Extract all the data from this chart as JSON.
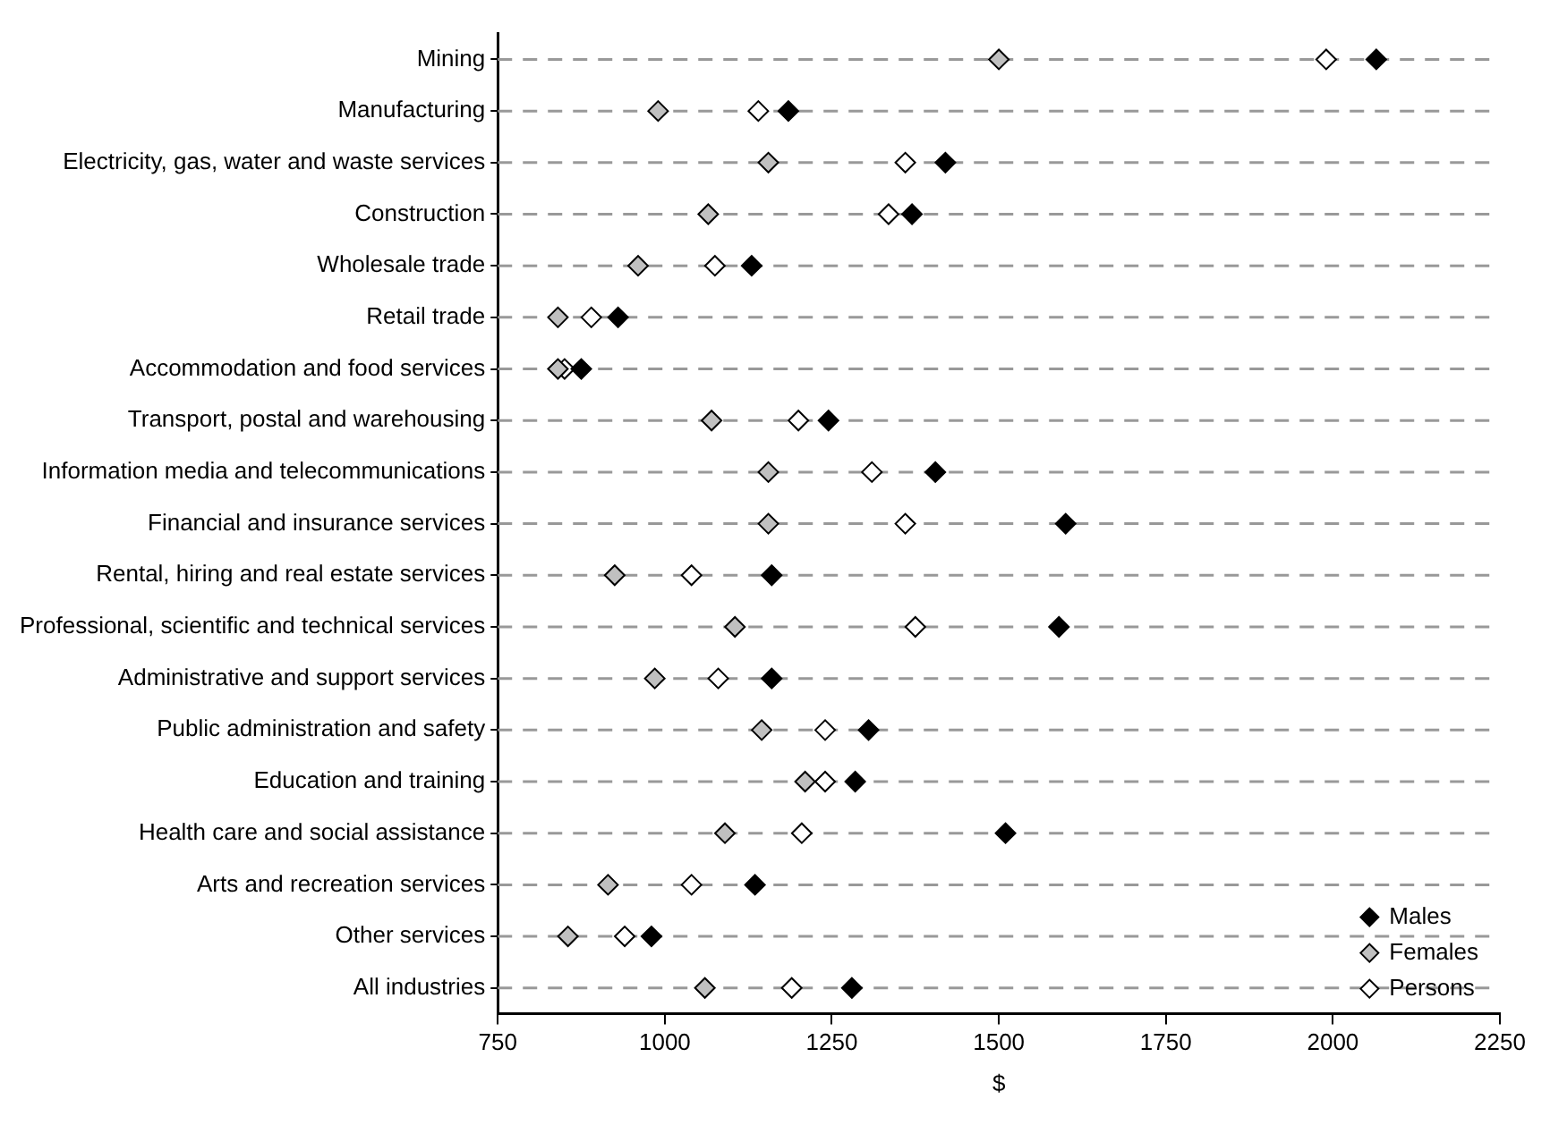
{
  "chart_data": {
    "type": "scatter",
    "orientation": "horizontal",
    "xlabel": "$",
    "categories": [
      "Mining",
      "Manufacturing",
      "Electricity, gas, water and waste services",
      "Construction",
      "Wholesale trade",
      "Retail trade",
      "Accommodation and food services",
      "Transport, postal and warehousing",
      "Information media and telecommunications",
      "Financial and insurance services",
      "Rental, hiring and real estate services",
      "Professional, scientific and technical services",
      "Administrative and support services",
      "Public administration and safety",
      "Education and training",
      "Health care and social assistance",
      "Arts and recreation services",
      "Other services",
      "All industries"
    ],
    "series": [
      {
        "name": "Males",
        "color": "#000000",
        "values": [
          2065,
          1185,
          1420,
          1370,
          1130,
          930,
          875,
          1245,
          1405,
          1600,
          1160,
          1590,
          1160,
          1305,
          1285,
          1510,
          1135,
          980,
          1280
        ]
      },
      {
        "name": "Females",
        "color": "#c0c0c0",
        "values": [
          1500,
          990,
          1155,
          1065,
          960,
          840,
          840,
          1070,
          1155,
          1155,
          925,
          1105,
          985,
          1145,
          1210,
          1090,
          915,
          855,
          1060
        ]
      },
      {
        "name": "Persons",
        "color": "#ffffff",
        "values": [
          1990,
          1140,
          1360,
          1335,
          1075,
          890,
          850,
          1200,
          1310,
          1360,
          1040,
          1375,
          1080,
          1240,
          1240,
          1205,
          1040,
          940,
          1190
        ]
      }
    ],
    "xlim": [
      750,
      2250
    ],
    "xticks": [
      750,
      1000,
      1250,
      1500,
      1750,
      2000,
      2250
    ],
    "grid": "y",
    "legend": "bottom right",
    "marker": "diamond"
  }
}
